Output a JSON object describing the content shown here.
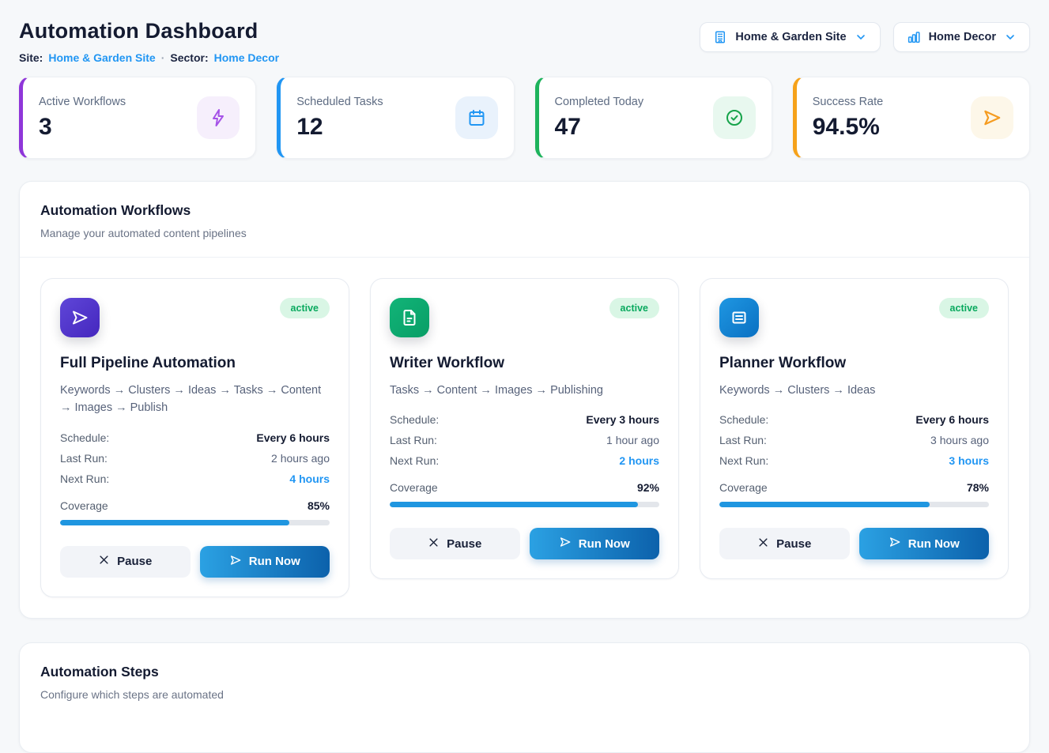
{
  "header": {
    "title": "Automation Dashboard",
    "site_label": "Site:",
    "site_value": "Home & Garden Site",
    "separator": "·",
    "sector_label": "Sector:",
    "sector_value": "Home Decor",
    "site_selector_label": "Home & Garden Site",
    "sector_selector_label": "Home Decor"
  },
  "stats": [
    {
      "label": "Active Workflows",
      "value": "3",
      "icon": "lightning-bolt-icon",
      "accent": "#8f36d9"
    },
    {
      "label": "Scheduled Tasks",
      "value": "12",
      "icon": "calendar-icon",
      "accent": "#2196f3"
    },
    {
      "label": "Completed Today",
      "value": "47",
      "icon": "check-circle-icon",
      "accent": "#1db35c"
    },
    {
      "label": "Success Rate",
      "value": "94.5%",
      "icon": "send-icon",
      "accent": "#f6a21a"
    }
  ],
  "workflows_section": {
    "title": "Automation Workflows",
    "subtitle": "Manage your automated content pipelines",
    "labels": {
      "schedule": "Schedule:",
      "last_run": "Last Run:",
      "next_run": "Next Run:",
      "coverage": "Coverage",
      "pause": "Pause",
      "run_now": "Run Now"
    },
    "cards": [
      {
        "name": "Full Pipeline Automation",
        "pipeline": "Keywords → Clusters → Ideas → Tasks → Content → Images → Publish",
        "status": "active",
        "icon": "send-icon",
        "schedule": "Every 6 hours",
        "last_run": "2 hours ago",
        "next_run": "4 hours",
        "coverage_text": "85%",
        "coverage_pct": 85
      },
      {
        "name": "Writer Workflow",
        "pipeline": "Tasks → Content → Images → Publishing",
        "status": "active",
        "icon": "document-icon",
        "schedule": "Every 3 hours",
        "last_run": "1 hour ago",
        "next_run": "2 hours",
        "coverage_text": "92%",
        "coverage_pct": 92
      },
      {
        "name": "Planner Workflow",
        "pipeline": "Keywords → Clusters → Ideas",
        "status": "active",
        "icon": "list-icon",
        "schedule": "Every 6 hours",
        "last_run": "3 hours ago",
        "next_run": "3 hours",
        "coverage_text": "78%",
        "coverage_pct": 78
      }
    ]
  },
  "steps_section": {
    "title": "Automation Steps",
    "subtitle": "Configure which steps are automated"
  },
  "colors": {
    "brand_blue": "#2196f3",
    "link_blue": "#2196f3",
    "active_badge_bg": "#d9f6e5",
    "active_badge_text": "#09a95e",
    "accent_purple": "#8f36d9",
    "accent_green": "#1db35c",
    "accent_orange": "#f6a21a",
    "run_gradient_start": "#2ba1e3",
    "run_gradient_end": "#0c61ab",
    "progress_fill": "#1f96e0",
    "page_bg": "#f6f8fa"
  }
}
